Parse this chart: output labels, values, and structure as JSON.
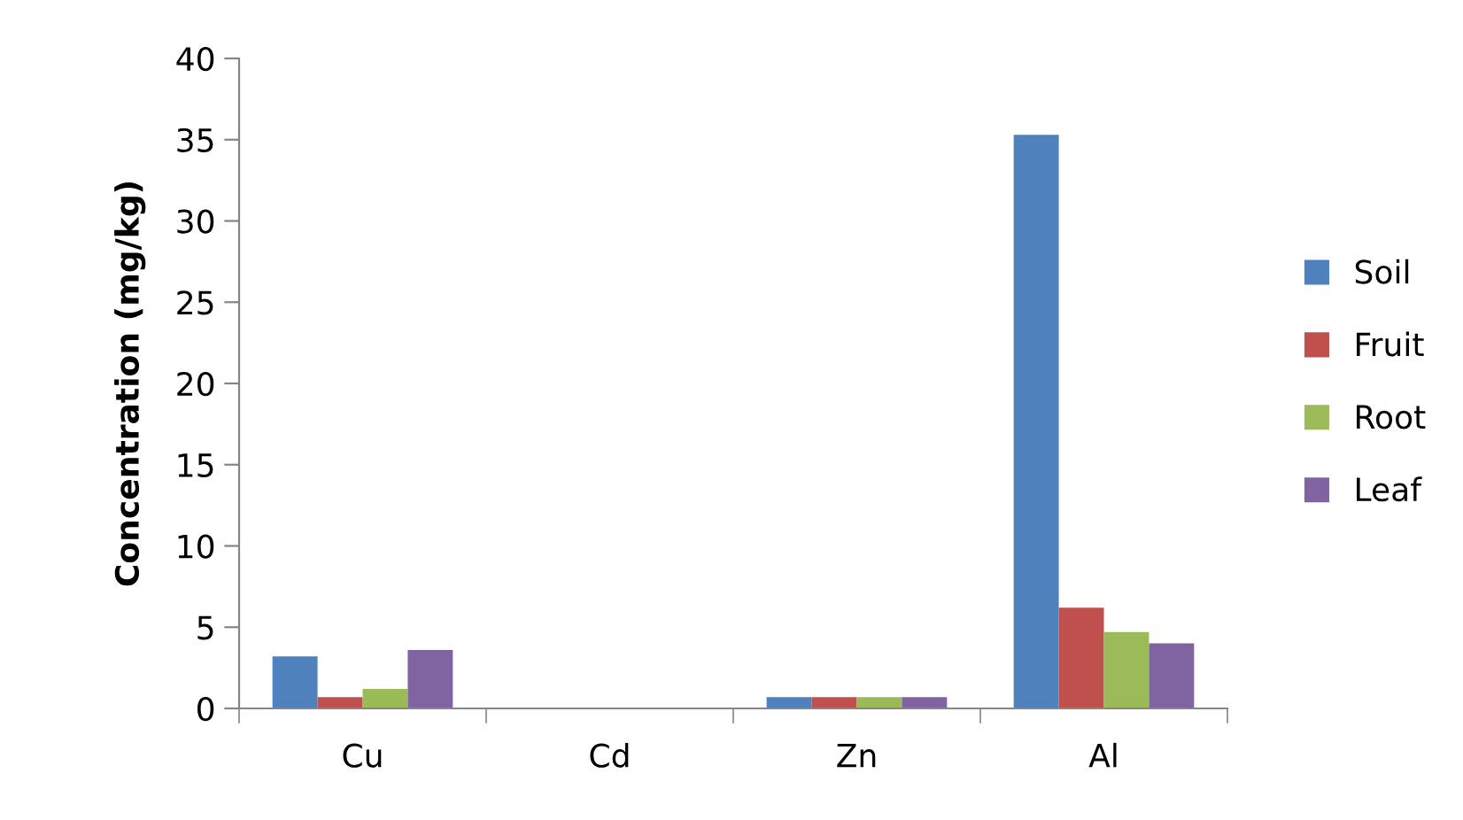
{
  "chart_data": {
    "type": "bar",
    "ylabel": "Concentration (mg/kg)",
    "categories": [
      "Cu",
      "Cd",
      "Zn",
      "Al"
    ],
    "series": [
      {
        "name": "Soil",
        "color": "#4f81bd",
        "values": [
          3.2,
          0,
          0.7,
          35.3
        ]
      },
      {
        "name": "Fruit",
        "color": "#c0504d",
        "values": [
          0.7,
          0,
          0.7,
          6.2
        ]
      },
      {
        "name": "Root",
        "color": "#9bbb59",
        "values": [
          1.2,
          0,
          0.7,
          4.7
        ]
      },
      {
        "name": "Leaf",
        "color": "#8064a2",
        "values": [
          3.6,
          0,
          0.7,
          4.0
        ]
      }
    ],
    "ylim": [
      0,
      40
    ],
    "yticks": [
      0,
      5,
      10,
      15,
      20,
      25,
      30,
      35,
      40
    ],
    "grid": false,
    "legend": "right"
  }
}
